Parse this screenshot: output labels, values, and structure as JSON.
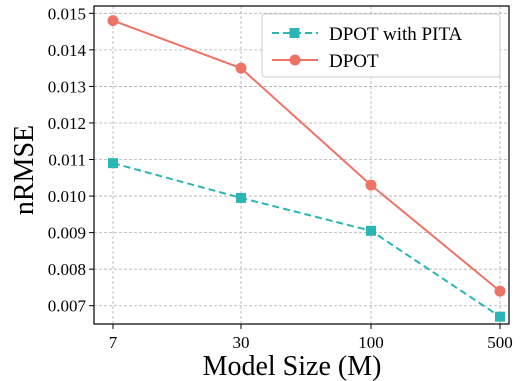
{
  "chart_data": {
    "type": "line",
    "title": "",
    "xlabel": "Model Size (M)",
    "ylabel": "nRMSE",
    "categories": [
      "7",
      "30",
      "100",
      "500"
    ],
    "ylim": [
      0.0065,
      0.0152
    ],
    "yticks": [
      "0.007",
      "0.008",
      "0.009",
      "0.010",
      "0.011",
      "0.012",
      "0.013",
      "0.014",
      "0.015"
    ],
    "grid": true,
    "legend_position": "top-right",
    "series": [
      {
        "name": "DPOT with PITA",
        "values": [
          0.0109,
          0.00995,
          0.00905,
          0.0067
        ],
        "color": "#2bb5b5",
        "line_style": "dashed",
        "marker": "square"
      },
      {
        "name": "DPOT",
        "values": [
          0.0148,
          0.0135,
          0.0103,
          0.0074
        ],
        "color": "#ee7367",
        "line_style": "solid",
        "marker": "circle"
      }
    ]
  }
}
